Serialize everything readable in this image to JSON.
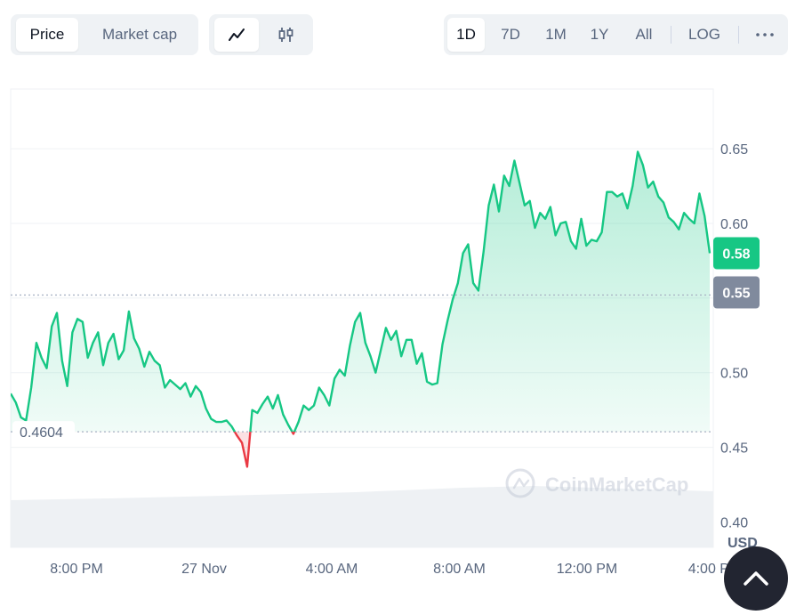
{
  "toolbar": {
    "data_type_tabs": [
      {
        "label": "Price",
        "active": true
      },
      {
        "label": "Market cap",
        "active": false
      }
    ],
    "chart_type_icons": [
      {
        "icon": "line-chart-icon",
        "active": true
      },
      {
        "icon": "candlestick-icon",
        "active": false
      }
    ],
    "time_ranges": [
      {
        "label": "1D",
        "active": true
      },
      {
        "label": "7D",
        "active": false
      },
      {
        "label": "1M",
        "active": false
      },
      {
        "label": "1Y",
        "active": false
      },
      {
        "label": "All",
        "active": false
      }
    ],
    "log_label": "LOG",
    "more_icon": "more-horizontal-icon"
  },
  "watermark": "CoinMarketCap",
  "scroll_top_icon": "chevron-up-icon",
  "colors": {
    "up": "#16c784",
    "down": "#ea3943",
    "open_badge": "#808a9d"
  },
  "chart_data": {
    "type": "area",
    "currency_label": "USD",
    "ylim": [
      0.383,
      0.69
    ],
    "y_ticks": [
      0.4,
      0.45,
      0.5,
      0.55,
      0.6,
      0.65
    ],
    "y_tick_labels": [
      "0.40",
      "0.45",
      "0.50",
      "0.55",
      "0.60",
      "0.65"
    ],
    "x_tick_labels": [
      "8:00 PM",
      "27 Nov",
      "4:00 AM",
      "8:00 AM",
      "12:00 PM",
      "4:00 PM"
    ],
    "open_price": 0.4604,
    "open_price_label": "0.4604",
    "current_price_label": "0.58",
    "reference_price_label": "0.55",
    "reference_price": 0.552,
    "grid": true,
    "prices": [
      0.486,
      0.48,
      0.47,
      0.468,
      0.49,
      0.52,
      0.51,
      0.503,
      0.531,
      0.54,
      0.508,
      0.491,
      0.527,
      0.536,
      0.534,
      0.51,
      0.52,
      0.527,
      0.505,
      0.52,
      0.526,
      0.509,
      0.515,
      0.541,
      0.523,
      0.516,
      0.504,
      0.514,
      0.508,
      0.505,
      0.49,
      0.495,
      0.492,
      0.489,
      0.493,
      0.484,
      0.491,
      0.487,
      0.476,
      0.469,
      0.467,
      0.467,
      0.468,
      0.464,
      0.458,
      0.453,
      0.437,
      0.475,
      0.473,
      0.479,
      0.484,
      0.476,
      0.485,
      0.472,
      0.465,
      0.459,
      0.467,
      0.478,
      0.475,
      0.478,
      0.49,
      0.485,
      0.478,
      0.496,
      0.502,
      0.498,
      0.518,
      0.534,
      0.54,
      0.52,
      0.511,
      0.5,
      0.515,
      0.53,
      0.522,
      0.528,
      0.511,
      0.522,
      0.522,
      0.506,
      0.513,
      0.494,
      0.492,
      0.493,
      0.519,
      0.535,
      0.549,
      0.56,
      0.58,
      0.586,
      0.56,
      0.555,
      0.581,
      0.612,
      0.626,
      0.608,
      0.632,
      0.625,
      0.642,
      0.627,
      0.612,
      0.615,
      0.597,
      0.607,
      0.603,
      0.611,
      0.592,
      0.6,
      0.601,
      0.588,
      0.583,
      0.603,
      0.585,
      0.589,
      0.588,
      0.594,
      0.621,
      0.621,
      0.618,
      0.62,
      0.61,
      0.625,
      0.648,
      0.639,
      0.624,
      0.628,
      0.618,
      0.614,
      0.604,
      0.601,
      0.596,
      0.607,
      0.603,
      0.6,
      0.62,
      0.605,
      0.58
    ],
    "area_color": "#16c784"
  }
}
